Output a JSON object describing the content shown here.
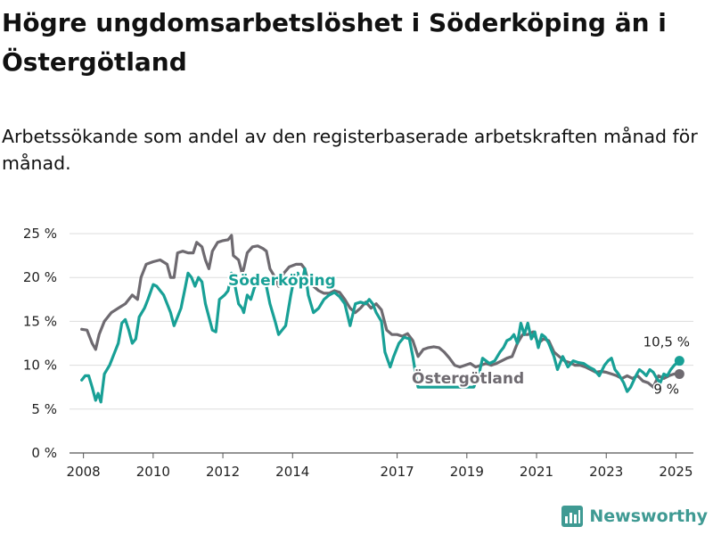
{
  "title": "Högre ungdomsarbetslöshet i Söderköping än i Östergötland",
  "subtitle": "Arbetssökande som andel av den registerbaserade arbetskraften månad för månad.",
  "brand": {
    "name": "Newsworthy",
    "color": "#3f9a93"
  },
  "chart_data": {
    "type": "line",
    "ylim": [
      0,
      25
    ],
    "xlim": [
      2007.6,
      2025.5
    ],
    "y_ticks": [
      {
        "value": 0,
        "label": "0 %"
      },
      {
        "value": 5,
        "label": "5 %"
      },
      {
        "value": 10,
        "label": "10 %"
      },
      {
        "value": 15,
        "label": "15 %"
      },
      {
        "value": 20,
        "label": "20 %"
      },
      {
        "value": 25,
        "label": "25 %"
      }
    ],
    "x_ticks": [
      {
        "value": 2008,
        "label": "2008"
      },
      {
        "value": 2010,
        "label": "2010"
      },
      {
        "value": 2012,
        "label": "2012"
      },
      {
        "value": 2014,
        "label": "2014"
      },
      {
        "value": 2017,
        "label": "2017"
      },
      {
        "value": 2019,
        "label": "2019"
      },
      {
        "value": 2021,
        "label": "2021"
      },
      {
        "value": 2023,
        "label": "2023"
      },
      {
        "value": 2025,
        "label": "2025"
      }
    ],
    "grid": "horizontal",
    "series": [
      {
        "name": "Östergötland",
        "color": "#6e6a70",
        "end_label": "9 %",
        "points": [
          [
            2007.95,
            14.1
          ],
          [
            2008.1,
            14
          ],
          [
            2008.25,
            12.5
          ],
          [
            2008.35,
            11.8
          ],
          [
            2008.45,
            13.5
          ],
          [
            2008.6,
            15
          ],
          [
            2008.8,
            16
          ],
          [
            2009.0,
            16.5
          ],
          [
            2009.2,
            17
          ],
          [
            2009.4,
            18
          ],
          [
            2009.55,
            17.5
          ],
          [
            2009.65,
            20
          ],
          [
            2009.8,
            21.5
          ],
          [
            2010.0,
            21.8
          ],
          [
            2010.2,
            22
          ],
          [
            2010.4,
            21.5
          ],
          [
            2010.5,
            20
          ],
          [
            2010.6,
            20
          ],
          [
            2010.7,
            22.8
          ],
          [
            2010.85,
            23
          ],
          [
            2011.0,
            22.8
          ],
          [
            2011.15,
            22.8
          ],
          [
            2011.25,
            24
          ],
          [
            2011.4,
            23.5
          ],
          [
            2011.5,
            22
          ],
          [
            2011.6,
            21
          ],
          [
            2011.7,
            23
          ],
          [
            2011.85,
            24
          ],
          [
            2012.0,
            24.2
          ],
          [
            2012.15,
            24.3
          ],
          [
            2012.25,
            24.8
          ],
          [
            2012.3,
            22.5
          ],
          [
            2012.45,
            22
          ],
          [
            2012.55,
            20.5
          ],
          [
            2012.6,
            21
          ],
          [
            2012.7,
            22.8
          ],
          [
            2012.85,
            23.5
          ],
          [
            2013.0,
            23.6
          ],
          [
            2013.15,
            23.3
          ],
          [
            2013.25,
            23
          ],
          [
            2013.35,
            21
          ],
          [
            2013.5,
            20
          ],
          [
            2013.6,
            19
          ],
          [
            2013.75,
            20.5
          ],
          [
            2013.9,
            21.2
          ],
          [
            2014.1,
            21.5
          ],
          [
            2014.25,
            21.5
          ],
          [
            2014.35,
            21
          ],
          [
            2014.45,
            19.5
          ],
          [
            2014.6,
            19
          ],
          [
            2014.75,
            18.5
          ],
          [
            2014.9,
            18.2
          ],
          [
            2015.05,
            18.2
          ],
          [
            2015.2,
            18.5
          ],
          [
            2015.35,
            18.3
          ],
          [
            2015.5,
            17.5
          ],
          [
            2015.65,
            16.5
          ],
          [
            2015.8,
            16
          ],
          [
            2015.95,
            16.5
          ],
          [
            2016.1,
            17.2
          ],
          [
            2016.25,
            16.5
          ],
          [
            2016.4,
            17
          ],
          [
            2016.55,
            16.3
          ],
          [
            2016.7,
            14
          ],
          [
            2016.85,
            13.5
          ],
          [
            2017.0,
            13.5
          ],
          [
            2017.15,
            13.3
          ],
          [
            2017.3,
            13.6
          ],
          [
            2017.45,
            12.8
          ],
          [
            2017.6,
            11
          ],
          [
            2017.75,
            11.8
          ],
          [
            2017.9,
            12
          ],
          [
            2018.05,
            12.1
          ],
          [
            2018.2,
            12
          ],
          [
            2018.35,
            11.5
          ],
          [
            2018.5,
            10.8
          ],
          [
            2018.65,
            10
          ],
          [
            2018.8,
            9.8
          ],
          [
            2018.95,
            10
          ],
          [
            2019.1,
            10.2
          ],
          [
            2019.25,
            9.8
          ],
          [
            2019.4,
            10
          ],
          [
            2019.55,
            10.2
          ],
          [
            2019.7,
            10
          ],
          [
            2019.85,
            10.2
          ],
          [
            2020.0,
            10.5
          ],
          [
            2020.15,
            10.8
          ],
          [
            2020.3,
            11
          ],
          [
            2020.45,
            12.5
          ],
          [
            2020.6,
            13.5
          ],
          [
            2020.75,
            13.5
          ],
          [
            2020.9,
            13.8
          ],
          [
            2021.05,
            12.5
          ],
          [
            2021.2,
            13
          ],
          [
            2021.35,
            12.8
          ],
          [
            2021.5,
            11.5
          ],
          [
            2021.65,
            11
          ],
          [
            2021.8,
            10.5
          ],
          [
            2021.95,
            10.3
          ],
          [
            2022.1,
            10
          ],
          [
            2022.25,
            10
          ],
          [
            2022.4,
            9.8
          ],
          [
            2022.55,
            9.5
          ],
          [
            2022.7,
            9.2
          ],
          [
            2022.85,
            9.3
          ],
          [
            2023.0,
            9.2
          ],
          [
            2023.15,
            9
          ],
          [
            2023.3,
            8.8
          ],
          [
            2023.45,
            8.5
          ],
          [
            2023.6,
            8.8
          ],
          [
            2023.75,
            8.5
          ],
          [
            2023.9,
            8.8
          ],
          [
            2024.05,
            8.2
          ],
          [
            2024.2,
            8
          ],
          [
            2024.35,
            7.5
          ],
          [
            2024.5,
            8.8
          ],
          [
            2024.65,
            8.5
          ],
          [
            2024.8,
            8.8
          ],
          [
            2024.95,
            9
          ],
          [
            2025.1,
            9
          ]
        ]
      },
      {
        "name": "Söderköping",
        "color": "#18a096",
        "end_label": "10,5 %",
        "points": [
          [
            2007.95,
            8.3
          ],
          [
            2008.05,
            8.8
          ],
          [
            2008.15,
            8.8
          ],
          [
            2008.25,
            7.5
          ],
          [
            2008.35,
            6
          ],
          [
            2008.42,
            6.8
          ],
          [
            2008.5,
            5.8
          ],
          [
            2008.6,
            9
          ],
          [
            2008.75,
            10
          ],
          [
            2008.9,
            11.5
          ],
          [
            2009.0,
            12.5
          ],
          [
            2009.1,
            14.8
          ],
          [
            2009.2,
            15.2
          ],
          [
            2009.3,
            14
          ],
          [
            2009.4,
            12.5
          ],
          [
            2009.5,
            13
          ],
          [
            2009.6,
            15.5
          ],
          [
            2009.75,
            16.5
          ],
          [
            2009.85,
            17.5
          ],
          [
            2010.0,
            19.2
          ],
          [
            2010.1,
            19
          ],
          [
            2010.2,
            18.5
          ],
          [
            2010.3,
            18
          ],
          [
            2010.4,
            17
          ],
          [
            2010.5,
            16
          ],
          [
            2010.6,
            14.5
          ],
          [
            2010.7,
            15.5
          ],
          [
            2010.8,
            16.5
          ],
          [
            2010.9,
            18.5
          ],
          [
            2011.0,
            20.5
          ],
          [
            2011.1,
            20
          ],
          [
            2011.2,
            19
          ],
          [
            2011.3,
            20
          ],
          [
            2011.4,
            19.5
          ],
          [
            2011.5,
            17
          ],
          [
            2011.6,
            15.5
          ],
          [
            2011.7,
            14
          ],
          [
            2011.8,
            13.8
          ],
          [
            2011.9,
            17.5
          ],
          [
            2012.05,
            18
          ],
          [
            2012.15,
            18.5
          ],
          [
            2012.25,
            20.5
          ],
          [
            2012.35,
            19
          ],
          [
            2012.45,
            17
          ],
          [
            2012.55,
            16.5
          ],
          [
            2012.6,
            16
          ],
          [
            2012.7,
            18
          ],
          [
            2012.8,
            17.5
          ],
          [
            2012.9,
            18.8
          ],
          [
            2013.0,
            19.5
          ],
          [
            2013.15,
            20
          ],
          [
            2013.25,
            19
          ],
          [
            2013.35,
            17
          ],
          [
            2013.5,
            15
          ],
          [
            2013.6,
            13.5
          ],
          [
            2013.7,
            14
          ],
          [
            2013.8,
            14.5
          ],
          [
            2013.95,
            18
          ],
          [
            2014.05,
            20
          ],
          [
            2014.15,
            20.5
          ],
          [
            2014.25,
            19
          ],
          [
            2014.35,
            21
          ],
          [
            2014.45,
            18
          ],
          [
            2014.6,
            16
          ],
          [
            2014.75,
            16.5
          ],
          [
            2014.9,
            17.5
          ],
          [
            2015.05,
            18
          ],
          [
            2015.2,
            18.3
          ],
          [
            2015.35,
            17.8
          ],
          [
            2015.5,
            17
          ],
          [
            2015.65,
            14.5
          ],
          [
            2015.8,
            17
          ],
          [
            2015.95,
            17.2
          ],
          [
            2016.1,
            17
          ],
          [
            2016.2,
            17.5
          ],
          [
            2016.3,
            17
          ],
          [
            2016.4,
            16
          ],
          [
            2016.55,
            15
          ],
          [
            2016.65,
            11.5
          ],
          [
            2016.8,
            9.8
          ],
          [
            2016.9,
            11
          ],
          [
            2017.05,
            12.5
          ],
          [
            2017.2,
            13.2
          ],
          [
            2017.35,
            13
          ],
          [
            2017.45,
            11
          ],
          [
            2017.55,
            8.5
          ],
          [
            2017.6,
            7.5
          ],
          [
            2019.2,
            7.5
          ],
          [
            2019.35,
            9
          ],
          [
            2019.45,
            10.8
          ],
          [
            2019.55,
            10.5
          ],
          [
            2019.65,
            10.2
          ],
          [
            2019.8,
            10.5
          ],
          [
            2019.95,
            11.5
          ],
          [
            2020.05,
            12
          ],
          [
            2020.15,
            12.8
          ],
          [
            2020.25,
            13
          ],
          [
            2020.35,
            13.5
          ],
          [
            2020.45,
            12.5
          ],
          [
            2020.55,
            14.8
          ],
          [
            2020.65,
            13.5
          ],
          [
            2020.75,
            14.8
          ],
          [
            2020.85,
            13
          ],
          [
            2020.95,
            13.8
          ],
          [
            2021.05,
            12
          ],
          [
            2021.15,
            13.5
          ],
          [
            2021.25,
            13.2
          ],
          [
            2021.35,
            12.5
          ],
          [
            2021.5,
            11
          ],
          [
            2021.6,
            9.5
          ],
          [
            2021.75,
            11
          ],
          [
            2021.9,
            9.8
          ],
          [
            2022.05,
            10.5
          ],
          [
            2022.2,
            10.3
          ],
          [
            2022.35,
            10.2
          ],
          [
            2022.5,
            9.8
          ],
          [
            2022.65,
            9.5
          ],
          [
            2022.8,
            8.8
          ],
          [
            2022.95,
            10
          ],
          [
            2023.05,
            10.5
          ],
          [
            2023.15,
            10.8
          ],
          [
            2023.25,
            9.5
          ],
          [
            2023.35,
            9
          ],
          [
            2023.5,
            8
          ],
          [
            2023.6,
            7
          ],
          [
            2023.7,
            7.5
          ],
          [
            2023.85,
            8.8
          ],
          [
            2023.95,
            9.5
          ],
          [
            2024.05,
            9.2
          ],
          [
            2024.15,
            8.8
          ],
          [
            2024.25,
            9.5
          ],
          [
            2024.35,
            9.2
          ],
          [
            2024.45,
            8.5
          ],
          [
            2024.55,
            8
          ],
          [
            2024.65,
            9
          ],
          [
            2024.75,
            8.8
          ],
          [
            2024.85,
            9.5
          ],
          [
            2024.95,
            10
          ],
          [
            2025.1,
            10.5
          ]
        ]
      }
    ]
  }
}
